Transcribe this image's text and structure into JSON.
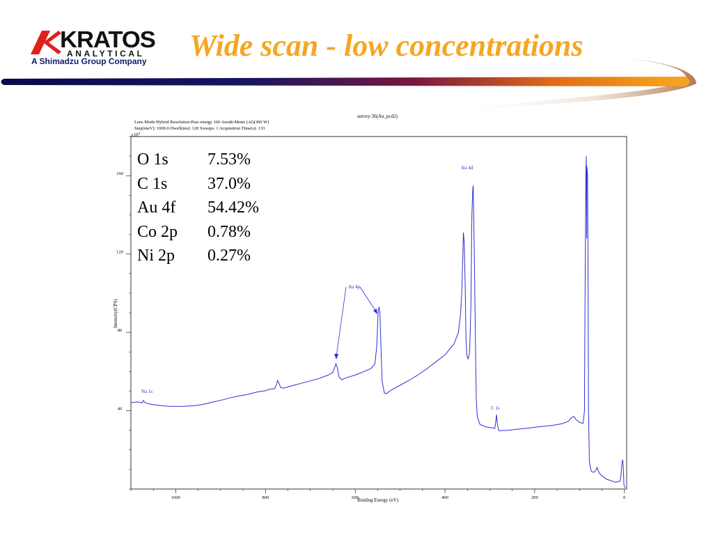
{
  "logo": {
    "brand": "KRATOS",
    "division": "ANALYTICAL",
    "tagline": "A Shimadzu Group Company"
  },
  "slide_title": "Wide scan - low concentrations",
  "colors": {
    "title": "#f5a623",
    "logo_red": "#e0201b",
    "tagline": "#101a6a",
    "spectrum": "#2b2fd1"
  },
  "chart_data": {
    "type": "line",
    "title": "survey:36(Au_pcd2)",
    "params_line1": "Lens Mode:Hybrid   Resolution:Pass energy 160   Anode:Mono (Al)(300 W)",
    "params_line2": "Step(meV): 1000.0   Dwell(ms): 120   Sweeps: 1   Acquisition Time(s): 133",
    "y_multiplier": "x10",
    "y_multiplier_exp": "4",
    "xlabel": "Binding Energy (eV)",
    "ylabel": "Intensity(CPS)",
    "xlim": [
      1100,
      -5
    ],
    "x_reversed": true,
    "ylim": [
      0,
      180
    ],
    "x_ticks": [
      1000,
      800,
      600,
      400,
      200,
      0
    ],
    "y_ticks": [
      40,
      80,
      120,
      160
    ],
    "grid": false,
    "series": [
      {
        "points": [
          [
            1100,
            44
          ],
          [
            1085,
            44.5
          ],
          [
            1075,
            44
          ],
          [
            1072,
            45.2
          ],
          [
            1068,
            44
          ],
          [
            1060,
            43.5
          ],
          [
            1040,
            42.8
          ],
          [
            1020,
            42.3
          ],
          [
            1000,
            42.2
          ],
          [
            980,
            42.3
          ],
          [
            960,
            42.5
          ],
          [
            940,
            43.2
          ],
          [
            920,
            44.3
          ],
          [
            900,
            45.3
          ],
          [
            880,
            46.5
          ],
          [
            860,
            47.5
          ],
          [
            840,
            48.3
          ],
          [
            820,
            49.5
          ],
          [
            800,
            50.2
          ],
          [
            790,
            51
          ],
          [
            780,
            51.2
          ],
          [
            776,
            53
          ],
          [
            773,
            55.5
          ],
          [
            770,
            54
          ],
          [
            766,
            51.8
          ],
          [
            760,
            51.5
          ],
          [
            740,
            52.8
          ],
          [
            720,
            54
          ],
          [
            700,
            55.2
          ],
          [
            680,
            56.5
          ],
          [
            660,
            58.2
          ],
          [
            650,
            59.5
          ],
          [
            646,
            62
          ],
          [
            643,
            64
          ],
          [
            640,
            62
          ],
          [
            636,
            57.2
          ],
          [
            630,
            55.8
          ],
          [
            620,
            56.8
          ],
          [
            600,
            58.2
          ],
          [
            580,
            60
          ],
          [
            565,
            61.5
          ],
          [
            556,
            64
          ],
          [
            552,
            73
          ],
          [
            549,
            90
          ],
          [
            547,
            93
          ],
          [
            545,
            90
          ],
          [
            543,
            75
          ],
          [
            540,
            55
          ],
          [
            535,
            49
          ],
          [
            530,
            48.8
          ],
          [
            520,
            50.5
          ],
          [
            500,
            53
          ],
          [
            480,
            55.5
          ],
          [
            460,
            58.3
          ],
          [
            440,
            61.5
          ],
          [
            420,
            65
          ],
          [
            400,
            68.5
          ],
          [
            380,
            74
          ],
          [
            370,
            80
          ],
          [
            365,
            90
          ],
          [
            362,
            103
          ],
          [
            360,
            120
          ],
          [
            359,
            131
          ],
          [
            357,
            126
          ],
          [
            355,
            105
          ],
          [
            353,
            76
          ],
          [
            351,
            68
          ],
          [
            348,
            66.5
          ],
          [
            345,
            70
          ],
          [
            342,
            95
          ],
          [
            340,
            140
          ],
          [
            338,
            153
          ],
          [
            337,
            155
          ],
          [
            336,
            140
          ],
          [
            334,
            110
          ],
          [
            332,
            72
          ],
          [
            330,
            45
          ],
          [
            328,
            37
          ],
          [
            322,
            33
          ],
          [
            310,
            31.8
          ],
          [
            295,
            31.2
          ],
          [
            289,
            31
          ],
          [
            287,
            34
          ],
          [
            285,
            38
          ],
          [
            283,
            33
          ],
          [
            280,
            29.8
          ],
          [
            260,
            30
          ],
          [
            240,
            30.5
          ],
          [
            220,
            31
          ],
          [
            200,
            31.5
          ],
          [
            180,
            32
          ],
          [
            160,
            32.5
          ],
          [
            140,
            33.3
          ],
          [
            125,
            34.5
          ],
          [
            118,
            36.5
          ],
          [
            112,
            37
          ],
          [
            108,
            35.5
          ],
          [
            100,
            34
          ],
          [
            92,
            33.5
          ],
          [
            89,
            40
          ],
          [
            88,
            90
          ],
          [
            86,
            160
          ],
          [
            85,
            170
          ],
          [
            84,
            128
          ],
          [
            84,
            165
          ],
          [
            82,
            160
          ],
          [
            81,
            105
          ],
          [
            80,
            40
          ],
          [
            78,
            14
          ],
          [
            74,
            9
          ],
          [
            68,
            8.5
          ],
          [
            64,
            9.5
          ],
          [
            61,
            11
          ],
          [
            58,
            9
          ],
          [
            54,
            7.5
          ],
          [
            40,
            5
          ],
          [
            20,
            3.5
          ],
          [
            10,
            4
          ],
          [
            8,
            6
          ],
          [
            6,
            12
          ],
          [
            4,
            15
          ],
          [
            3,
            13
          ],
          [
            2,
            8
          ],
          [
            1,
            2
          ],
          [
            0,
            1.2
          ],
          [
            -3,
            0.7
          ]
        ]
      }
    ],
    "annotations": {
      "na": "Na 1s",
      "au4p": "Au 4p",
      "au4d": "Au 4d",
      "c1s": "C 1s"
    },
    "composition": [
      {
        "element": "O 1s",
        "value": "7.53%"
      },
      {
        "element": "C 1s",
        "value": "37.0%"
      },
      {
        "element": "Au 4f",
        "value": "54.42%"
      },
      {
        "element": "Co 2p",
        "value": "0.78%"
      },
      {
        "element": "Ni 2p",
        "value": "0.27%"
      }
    ]
  }
}
